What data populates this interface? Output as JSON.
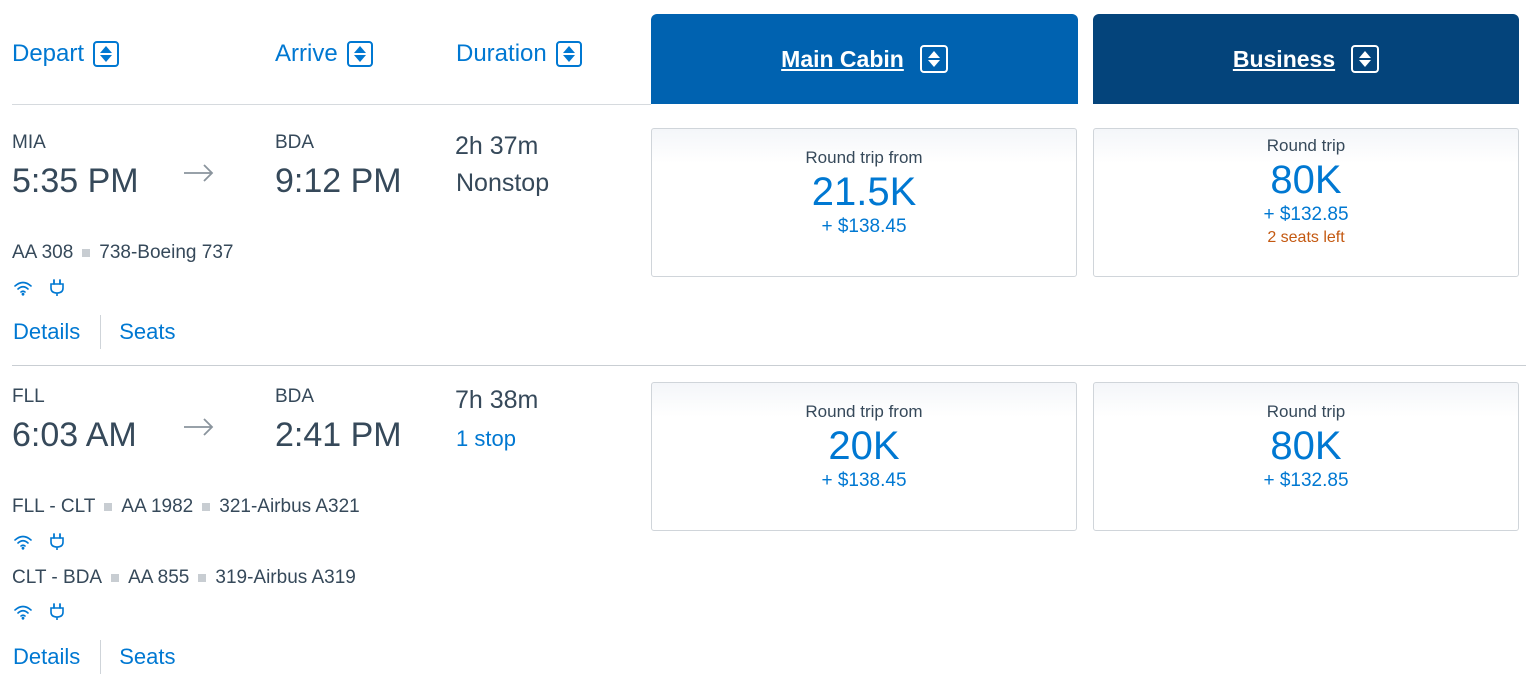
{
  "header": {
    "columns": [
      {
        "label": "Depart"
      },
      {
        "label": "Arrive"
      },
      {
        "label": "Duration"
      }
    ],
    "cabins": [
      {
        "label": "Main Cabin",
        "color": "#0062b0"
      },
      {
        "label": "Business",
        "color": "#04447b"
      }
    ]
  },
  "flights": [
    {
      "origin": "MIA",
      "depart_time": "5:35 PM",
      "destination": "BDA",
      "arrive_time": "9:12 PM",
      "duration": "2h 37m",
      "stops": "Nonstop",
      "segments": [
        {
          "route": "",
          "flight": "AA 308",
          "aircraft": "738-Boeing 737"
        }
      ],
      "links": {
        "details": "Details",
        "seats": "Seats"
      },
      "fares": [
        {
          "label": "Round trip from",
          "miles": "21.5K",
          "taxes": "+ $138.45",
          "seats_left": ""
        },
        {
          "label": "Round trip",
          "miles": "80K",
          "taxes": "+ $132.85",
          "seats_left": "2 seats left"
        }
      ]
    },
    {
      "origin": "FLL",
      "depart_time": "6:03 AM",
      "destination": "BDA",
      "arrive_time": "2:41 PM",
      "duration": "7h 38m",
      "stops": "1 stop",
      "segments": [
        {
          "route": "FLL - CLT",
          "flight": "AA 1982",
          "aircraft": "321-Airbus A321"
        },
        {
          "route": "CLT - BDA",
          "flight": "AA 855",
          "aircraft": "319-Airbus A319"
        }
      ],
      "links": {
        "details": "Details",
        "seats": "Seats"
      },
      "fares": [
        {
          "label": "Round trip from",
          "miles": "20K",
          "taxes": "+ $138.45",
          "seats_left": ""
        },
        {
          "label": "Round trip",
          "miles": "80K",
          "taxes": "+ $132.85",
          "seats_left": ""
        }
      ]
    }
  ],
  "amenity_icons": [
    "wifi-icon",
    "power-outlet-icon"
  ],
  "colors": {
    "link_blue": "#0078d2",
    "text": "#36495a",
    "seats_warning": "#c45911",
    "divider": "#d6dade"
  }
}
